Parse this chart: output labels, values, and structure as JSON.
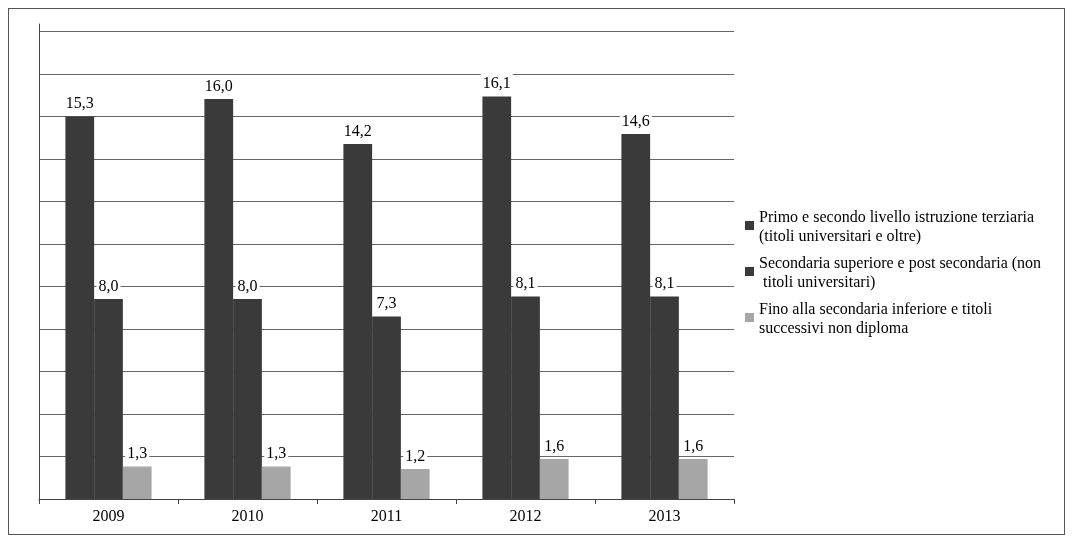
{
  "chart_data": {
    "type": "bar",
    "categories": [
      "2009",
      "2010",
      "2011",
      "2012",
      "2013"
    ],
    "series": [
      {
        "name": "Primo e secondo livello istruzione terziaria (titoli universitari e oltre)",
        "color": "#3a3a3a",
        "values": [
          15.3,
          16.0,
          14.2,
          16.1,
          14.6
        ],
        "value_labels": [
          "15,3",
          "16,0",
          "14,2",
          "16,1",
          "14,6"
        ]
      },
      {
        "name": "Secondaria superiore e post secondaria (non  titoli universitari)",
        "color": "#3a3a3a",
        "values": [
          8.0,
          8.0,
          7.3,
          8.1,
          8.1
        ],
        "value_labels": [
          "8,0",
          "8,0",
          "7,3",
          "8,1",
          "8,1"
        ]
      },
      {
        "name": "Fino alla secondaria inferiore e titoli successivi non diploma",
        "color": "#a6a6a6",
        "values": [
          1.3,
          1.3,
          1.2,
          1.6,
          1.6
        ],
        "value_labels": [
          "1,3",
          "1,3",
          "1,2",
          "1,6",
          "1,6"
        ]
      }
    ],
    "ylim": [
      0,
      19
    ],
    "yticks": [
      {
        "value": 0,
        "label": null
      },
      {
        "value": 1.7,
        "label": null
      },
      {
        "value": 3.4,
        "label": null
      },
      {
        "value": 5.1,
        "label": null
      },
      {
        "value": 6.8,
        "label": null
      },
      {
        "value": 8.5,
        "label": null
      },
      {
        "value": 10.2,
        "label": null
      },
      {
        "value": 11.9,
        "label": null
      },
      {
        "value": 13.6,
        "label": null
      },
      {
        "value": 15.3,
        "label": null
      },
      {
        "value": 17,
        "label": null
      },
      {
        "value": 18.7,
        "label": null
      }
    ],
    "tick_labels": "x",
    "grid": "y",
    "legend": "right"
  }
}
